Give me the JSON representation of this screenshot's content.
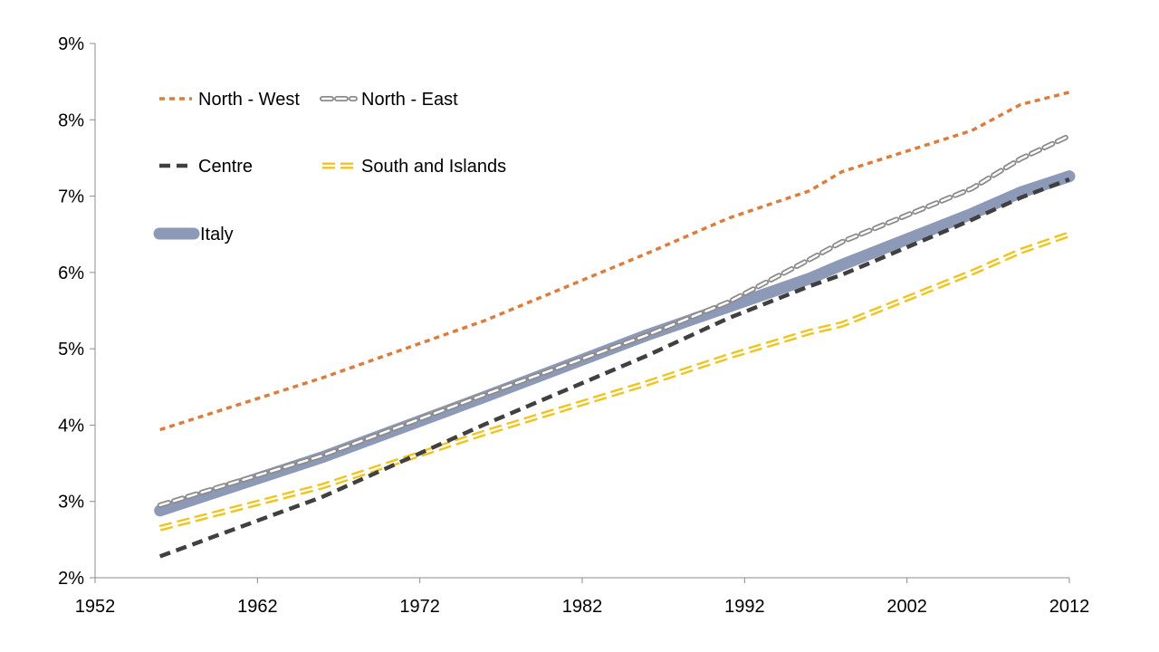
{
  "chart_data": {
    "type": "line",
    "title": "",
    "xlabel": "",
    "ylabel": "",
    "xlim": [
      1952,
      2012
    ],
    "ylim": [
      0.02,
      0.09
    ],
    "x_ticks": [
      {
        "value": 1952,
        "label": "1952"
      },
      {
        "value": 1962,
        "label": "1962"
      },
      {
        "value": 1972,
        "label": "1972"
      },
      {
        "value": 1982,
        "label": "1982"
      },
      {
        "value": 1992,
        "label": "1992"
      },
      {
        "value": 2002,
        "label": "2002"
      },
      {
        "value": 2012,
        "label": "2012"
      }
    ],
    "y_ticks": [
      {
        "value": 0.02,
        "label": "2%"
      },
      {
        "value": 0.03,
        "label": "3%"
      },
      {
        "value": 0.04,
        "label": "4%"
      },
      {
        "value": 0.05,
        "label": "5%"
      },
      {
        "value": 0.06,
        "label": "6%"
      },
      {
        "value": 0.07,
        "label": "7%"
      },
      {
        "value": 0.08,
        "label": "8%"
      },
      {
        "value": 0.09,
        "label": "9%"
      }
    ],
    "grid": false,
    "legend_position": "top-left",
    "series": [
      {
        "name": "North - West",
        "style": "dotted",
        "color": "#E07B39",
        "points": [
          [
            1956,
            0.0394
          ],
          [
            1966,
            0.0462
          ],
          [
            1976,
            0.0537
          ],
          [
            1986,
            0.0625
          ],
          [
            1991,
            0.0671
          ],
          [
            1996,
            0.0707
          ],
          [
            1998,
            0.0732
          ],
          [
            2006,
            0.0786
          ],
          [
            2009,
            0.082
          ],
          [
            2012,
            0.0836
          ]
        ]
      },
      {
        "name": "North - East",
        "style": "hollow-dashed",
        "color": "#8C8C8C",
        "points": [
          [
            1956,
            0.0295
          ],
          [
            1966,
            0.036
          ],
          [
            1976,
            0.044
          ],
          [
            1986,
            0.0518
          ],
          [
            1991,
            0.0561
          ],
          [
            1996,
            0.0617
          ],
          [
            1998,
            0.064
          ],
          [
            2006,
            0.071
          ],
          [
            2009,
            0.0749
          ],
          [
            2012,
            0.0779
          ]
        ]
      },
      {
        "name": "Centre",
        "style": "dashed",
        "color": "#404040",
        "points": [
          [
            1956,
            0.0228
          ],
          [
            1966,
            0.0306
          ],
          [
            1976,
            0.0401
          ],
          [
            1986,
            0.0491
          ],
          [
            1991,
            0.054
          ],
          [
            1996,
            0.0582
          ],
          [
            1998,
            0.0597
          ],
          [
            2006,
            0.0669
          ],
          [
            2009,
            0.0698
          ],
          [
            2012,
            0.0722
          ]
        ]
      },
      {
        "name": "South and Islands",
        "style": "double-dashed",
        "color": "#F0C419",
        "points": [
          [
            1956,
            0.0265
          ],
          [
            1966,
            0.032
          ],
          [
            1976,
            0.039
          ],
          [
            1986,
            0.0455
          ],
          [
            1991,
            0.049
          ],
          [
            1996,
            0.0522
          ],
          [
            1998,
            0.0532
          ],
          [
            2006,
            0.06
          ],
          [
            2009,
            0.0628
          ],
          [
            2012,
            0.065
          ]
        ]
      },
      {
        "name": "Italy",
        "style": "thick",
        "color": "#8C9AB8",
        "points": [
          [
            1956,
            0.0288
          ],
          [
            1966,
            0.0358
          ],
          [
            1976,
            0.0437
          ],
          [
            1986,
            0.0518
          ],
          [
            1991,
            0.0555
          ],
          [
            1996,
            0.0592
          ],
          [
            1998,
            0.061
          ],
          [
            2006,
            0.0677
          ],
          [
            2009,
            0.0705
          ],
          [
            2012,
            0.0726
          ]
        ]
      }
    ]
  }
}
